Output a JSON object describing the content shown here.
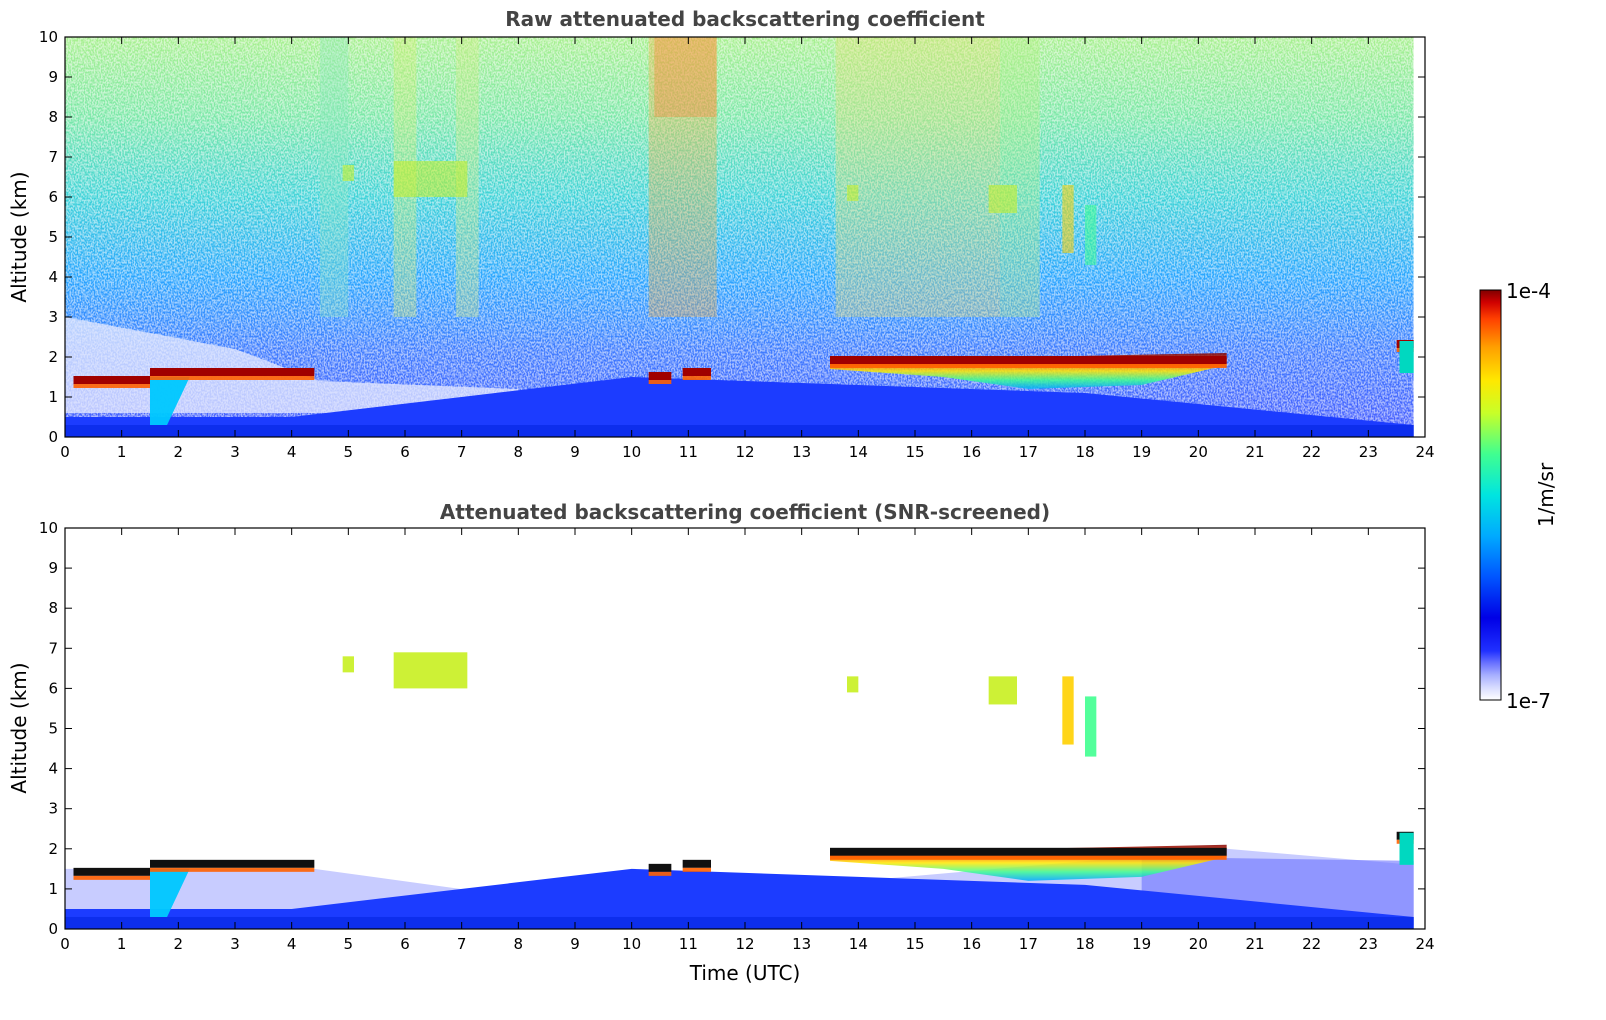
{
  "colors": {
    "colormap": [
      "#ffffff",
      "#d8dcff",
      "#a8b0ff",
      "#6a72ff",
      "#2030ff",
      "#0000e6",
      "#0055ff",
      "#00aaff",
      "#00e5e0",
      "#40ff90",
      "#c8ff28",
      "#ffe800",
      "#ffa000",
      "#ff4000",
      "#d00000",
      "#800000"
    ]
  },
  "chart_data": [
    {
      "type": "heatmap",
      "title": "Raw attenuated backscattering coefficient",
      "xlabel": "",
      "ylabel": "Altitude (km)",
      "xlim": [
        0,
        24
      ],
      "ylim": [
        0,
        10
      ],
      "xticks": [
        "0",
        "1",
        "2",
        "3",
        "4",
        "5",
        "6",
        "7",
        "8",
        "9",
        "10",
        "11",
        "12",
        "13",
        "14",
        "15",
        "16",
        "17",
        "18",
        "19",
        "20",
        "21",
        "22",
        "23",
        "24"
      ],
      "yticks": [
        "0",
        "1",
        "2",
        "3",
        "4",
        "5",
        "6",
        "7",
        "8",
        "9",
        "10"
      ],
      "features": {
        "surface_layer_top_km": [
          [
            0,
            0.5
          ],
          [
            4,
            0.5
          ],
          [
            10,
            1.5
          ],
          [
            14,
            1.3
          ],
          [
            18,
            1.1
          ],
          [
            24,
            0.3
          ]
        ],
        "cloud_base_layer": [
          {
            "t0": 0.15,
            "t1": 1.5,
            "alt_km": 1.4
          },
          {
            "t0": 1.5,
            "t1": 4.4,
            "alt_km": 1.6
          },
          {
            "t0": 10.3,
            "t1": 10.7,
            "alt_km": 1.5
          },
          {
            "t0": 10.9,
            "t1": 11.4,
            "alt_km": 1.6
          },
          {
            "t0": 13.5,
            "t1": 20.5,
            "alt_km": 1.9
          },
          {
            "t0": 23.5,
            "t1": 23.8,
            "alt_km": 2.3
          }
        ],
        "cirrus_patches": [
          {
            "t0": 4.9,
            "t1": 5.1,
            "alt0_km": 6.4,
            "alt1_km": 6.8
          },
          {
            "t0": 5.8,
            "t1": 7.1,
            "alt0_km": 6.0,
            "alt1_km": 6.9
          },
          {
            "t0": 13.8,
            "t1": 14.0,
            "alt0_km": 5.9,
            "alt1_km": 6.3
          },
          {
            "t0": 16.3,
            "t1": 16.8,
            "alt0_km": 5.6,
            "alt1_km": 6.3
          },
          {
            "t0": 17.6,
            "t1": 17.8,
            "alt0_km": 4.6,
            "alt1_km": 6.3
          },
          {
            "t0": 18.0,
            "t1": 18.2,
            "alt0_km": 4.3,
            "alt1_km": 5.8
          }
        ]
      }
    },
    {
      "type": "heatmap",
      "title": "Attenuated backscattering coefficient (SNR-screened)",
      "xlabel": "Time (UTC)",
      "ylabel": "Altitude (km)",
      "xlim": [
        0,
        24
      ],
      "ylim": [
        0,
        10
      ],
      "xticks": [
        "0",
        "1",
        "2",
        "3",
        "4",
        "5",
        "6",
        "7",
        "8",
        "9",
        "10",
        "11",
        "12",
        "13",
        "14",
        "15",
        "16",
        "17",
        "18",
        "19",
        "20",
        "21",
        "22",
        "23",
        "24"
      ],
      "yticks": [
        "0",
        "1",
        "2",
        "3",
        "4",
        "5",
        "6",
        "7",
        "8",
        "9",
        "10"
      ]
    }
  ],
  "colorbar": {
    "label": "1/m/sr",
    "max_label": "1e-4",
    "min_label": "1e-7",
    "scale": "log",
    "range": [
      1e-07,
      0.0001
    ]
  }
}
